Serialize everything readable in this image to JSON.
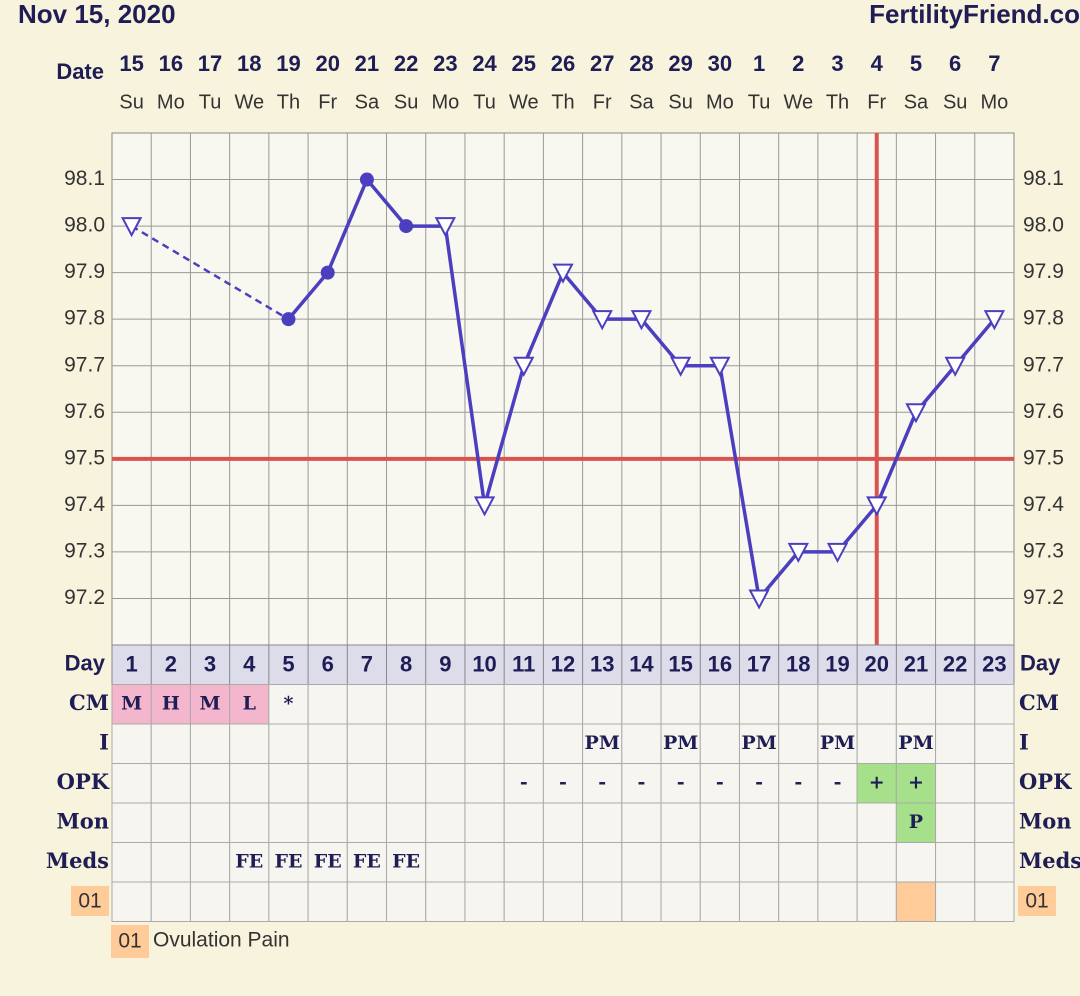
{
  "header": {
    "date": "Nov 15, 2020",
    "site": "FertilityFriend.co"
  },
  "chart_data": {
    "type": "line",
    "x_label": "Date",
    "day_label": "Day",
    "dates": [
      15,
      16,
      17,
      18,
      19,
      20,
      21,
      22,
      23,
      24,
      25,
      26,
      27,
      28,
      29,
      30,
      1,
      2,
      3,
      4,
      5,
      6,
      7
    ],
    "weekdays": [
      "Su",
      "Mo",
      "Tu",
      "We",
      "Th",
      "Fr",
      "Sa",
      "Su",
      "Mo",
      "Tu",
      "We",
      "Th",
      "Fr",
      "Sa",
      "Su",
      "Mo",
      "Tu",
      "We",
      "Th",
      "Fr",
      "Sa",
      "Su",
      "Mo"
    ],
    "x": [
      1,
      2,
      3,
      4,
      5,
      6,
      7,
      8,
      9,
      10,
      11,
      12,
      13,
      14,
      15,
      16,
      17,
      18,
      19,
      20,
      21,
      22,
      23
    ],
    "xlim": [
      0.5,
      23.5
    ],
    "values": [
      98.0,
      null,
      null,
      null,
      97.8,
      97.9,
      98.1,
      98.0,
      98.0,
      97.4,
      97.7,
      97.9,
      97.8,
      97.8,
      97.7,
      97.7,
      97.2,
      97.3,
      97.3,
      97.4,
      97.6,
      97.7,
      97.8
    ],
    "markers": [
      "open-triangle",
      null,
      null,
      null,
      "dot",
      "dot",
      "dot",
      "dot",
      "open-triangle",
      "open-triangle",
      "open-triangle",
      "open-triangle",
      "open-triangle",
      "open-triangle",
      "open-triangle",
      "open-triangle",
      "open-triangle",
      "open-triangle",
      "open-triangle",
      "open-triangle",
      "open-triangle",
      "open-triangle",
      "open-triangle"
    ],
    "color": "#4b3fc0",
    "ylim": [
      97.1,
      98.2
    ],
    "yticks": [
      97.2,
      97.3,
      97.4,
      97.5,
      97.6,
      97.7,
      97.8,
      97.9,
      {
        "value": 98,
        "label": "98.0"
      },
      98.1
    ],
    "grid": true,
    "coverline": 97.5,
    "ovulation_day": 20,
    "reference_color": "#d9534f"
  },
  "table": {
    "rows": [
      {
        "label": "CM",
        "cells": [
          "M",
          "H",
          "M",
          "L",
          "*",
          null,
          null,
          null,
          null,
          null,
          null,
          null,
          null,
          null,
          null,
          null,
          null,
          null,
          null,
          null,
          null,
          null,
          null
        ],
        "cell_colors": [
          "#f4b6cc",
          "#f4b6cc",
          "#f4b6cc",
          "#f4b6cc",
          null,
          null,
          null,
          null,
          null,
          null,
          null,
          null,
          null,
          null,
          null,
          null,
          null,
          null,
          null,
          null,
          null,
          null,
          null
        ]
      },
      {
        "label": "I",
        "cells": [
          null,
          null,
          null,
          null,
          null,
          null,
          null,
          null,
          null,
          null,
          null,
          null,
          "PM",
          null,
          "PM",
          null,
          "PM",
          null,
          "PM",
          null,
          "PM",
          null,
          null
        ],
        "cell_colors": [
          null,
          null,
          null,
          null,
          null,
          null,
          null,
          null,
          null,
          null,
          null,
          null,
          null,
          null,
          null,
          null,
          null,
          null,
          null,
          null,
          null,
          null,
          null
        ]
      },
      {
        "label": "OPK",
        "cells": [
          null,
          null,
          null,
          null,
          null,
          null,
          null,
          null,
          null,
          null,
          "-",
          "-",
          "-",
          "-",
          "-",
          "-",
          "-",
          "-",
          "-",
          "+",
          "+",
          null,
          null
        ],
        "cell_colors": [
          null,
          null,
          null,
          null,
          null,
          null,
          null,
          null,
          null,
          null,
          null,
          null,
          null,
          null,
          null,
          null,
          null,
          null,
          null,
          "#a6e08a",
          "#a6e08a",
          null,
          null
        ]
      },
      {
        "label": "Mon",
        "cells": [
          null,
          null,
          null,
          null,
          null,
          null,
          null,
          null,
          null,
          null,
          null,
          null,
          null,
          null,
          null,
          null,
          null,
          null,
          null,
          null,
          "P",
          null,
          null
        ],
        "cell_colors": [
          null,
          null,
          null,
          null,
          null,
          null,
          null,
          null,
          null,
          null,
          null,
          null,
          null,
          null,
          null,
          null,
          null,
          null,
          null,
          null,
          "#a6e08a",
          null,
          null
        ]
      },
      {
        "label": "Meds",
        "cells": [
          null,
          null,
          null,
          "FE",
          "FE",
          "FE",
          "FE",
          "FE",
          null,
          null,
          null,
          null,
          null,
          null,
          null,
          null,
          null,
          null,
          null,
          null,
          null,
          null,
          null
        ],
        "cell_colors": [
          null,
          null,
          null,
          null,
          null,
          null,
          null,
          null,
          null,
          null,
          null,
          null,
          null,
          null,
          null,
          null,
          null,
          null,
          null,
          null,
          null,
          null,
          null
        ]
      },
      {
        "label": "01",
        "cells": [
          null,
          null,
          null,
          null,
          null,
          null,
          null,
          null,
          null,
          null,
          null,
          null,
          null,
          null,
          null,
          null,
          null,
          null,
          null,
          null,
          null,
          null,
          null
        ],
        "cell_colors": [
          null,
          null,
          null,
          null,
          null,
          null,
          null,
          null,
          null,
          null,
          null,
          null,
          null,
          null,
          null,
          null,
          null,
          null,
          null,
          null,
          "#ffcc99",
          null,
          null
        ]
      }
    ]
  },
  "legend": {
    "code": "01",
    "label": "Ovulation Pain"
  }
}
